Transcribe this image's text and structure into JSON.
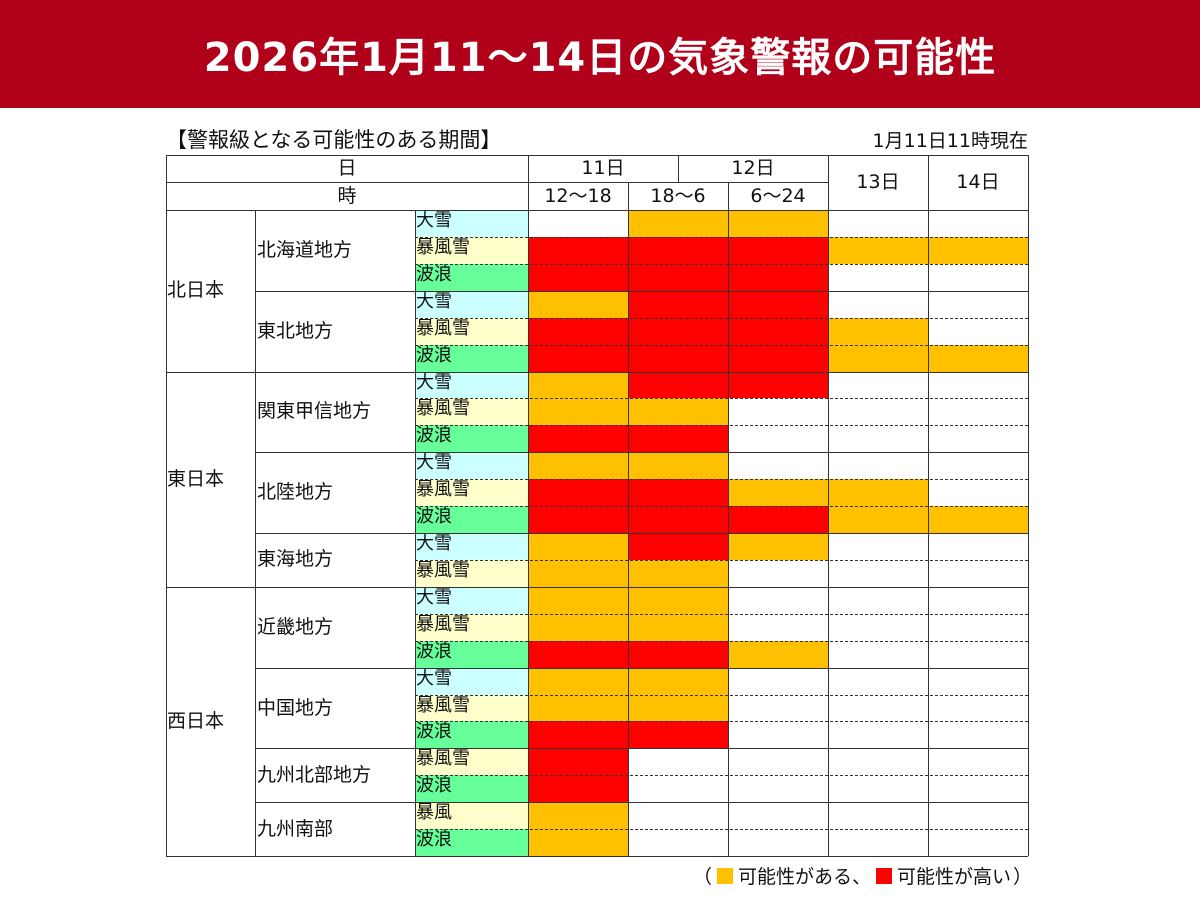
{
  "title": "2026年1月11〜14日の気象警報の可能性",
  "subtitle": "【警報級となる可能性のある期間】",
  "as_of": "1月11日11時現在",
  "colors": {
    "banner": "#b0001a",
    "possible": "#ffc000",
    "high": "#ff0000",
    "none": "#ffffff",
    "大雪": "#ccffff",
    "暴風雪": "#ffffcc",
    "暴風": "#ffffcc",
    "波浪": "#66ff99"
  },
  "header": {
    "day_label": "日",
    "hour_label": "時",
    "days": [
      "11日",
      "12日",
      "13日",
      "14日"
    ],
    "periods": [
      "12〜18",
      "18〜6",
      "6〜24"
    ]
  },
  "legend": {
    "open": "（",
    "possible": "可能性がある、",
    "high": "可能性が高い",
    "close": "）"
  },
  "levels_key": {
    "o": "可能性がある",
    "r": "可能性が高い",
    "w": "なし"
  },
  "groups": [
    {
      "name": "北日本",
      "areas": [
        {
          "name": "北海道地方",
          "rows": [
            {
              "type": "大雪",
              "levels": [
                "w",
                "o",
                "o",
                "w",
                "w"
              ]
            },
            {
              "type": "暴風雪",
              "levels": [
                "r",
                "r",
                "r",
                "o",
                "o"
              ]
            },
            {
              "type": "波浪",
              "levels": [
                "r",
                "r",
                "r",
                "w",
                "w"
              ]
            }
          ]
        },
        {
          "name": "東北地方",
          "rows": [
            {
              "type": "大雪",
              "levels": [
                "o",
                "r",
                "r",
                "w",
                "w"
              ]
            },
            {
              "type": "暴風雪",
              "levels": [
                "r",
                "r",
                "r",
                "o",
                "w"
              ]
            },
            {
              "type": "波浪",
              "levels": [
                "r",
                "r",
                "r",
                "o",
                "o"
              ]
            }
          ]
        }
      ]
    },
    {
      "name": "東日本",
      "areas": [
        {
          "name": "関東甲信地方",
          "rows": [
            {
              "type": "大雪",
              "levels": [
                "o",
                "r",
                "r",
                "w",
                "w"
              ]
            },
            {
              "type": "暴風雪",
              "levels": [
                "o",
                "o",
                "w",
                "w",
                "w"
              ]
            },
            {
              "type": "波浪",
              "levels": [
                "r",
                "r",
                "w",
                "w",
                "w"
              ]
            }
          ]
        },
        {
          "name": "北陸地方",
          "rows": [
            {
              "type": "大雪",
              "levels": [
                "o",
                "o",
                "w",
                "w",
                "w"
              ]
            },
            {
              "type": "暴風雪",
              "levels": [
                "r",
                "r",
                "o",
                "o",
                "w"
              ]
            },
            {
              "type": "波浪",
              "levels": [
                "r",
                "r",
                "r",
                "o",
                "o"
              ]
            }
          ]
        },
        {
          "name": "東海地方",
          "rows": [
            {
              "type": "大雪",
              "levels": [
                "o",
                "r",
                "o",
                "w",
                "w"
              ]
            },
            {
              "type": "暴風雪",
              "levels": [
                "o",
                "o",
                "w",
                "w",
                "w"
              ]
            }
          ]
        }
      ]
    },
    {
      "name": "西日本",
      "areas": [
        {
          "name": "近畿地方",
          "rows": [
            {
              "type": "大雪",
              "levels": [
                "o",
                "o",
                "w",
                "w",
                "w"
              ]
            },
            {
              "type": "暴風雪",
              "levels": [
                "o",
                "o",
                "w",
                "w",
                "w"
              ]
            },
            {
              "type": "波浪",
              "levels": [
                "r",
                "r",
                "o",
                "w",
                "w"
              ]
            }
          ]
        },
        {
          "name": "中国地方",
          "rows": [
            {
              "type": "大雪",
              "levels": [
                "o",
                "o",
                "w",
                "w",
                "w"
              ]
            },
            {
              "type": "暴風雪",
              "levels": [
                "o",
                "o",
                "w",
                "w",
                "w"
              ]
            },
            {
              "type": "波浪",
              "levels": [
                "r",
                "r",
                "w",
                "w",
                "w"
              ]
            }
          ]
        },
        {
          "name": "九州北部地方",
          "rows": [
            {
              "type": "暴風雪",
              "levels": [
                "r",
                "w",
                "w",
                "w",
                "w"
              ]
            },
            {
              "type": "波浪",
              "levels": [
                "r",
                "w",
                "w",
                "w",
                "w"
              ]
            }
          ]
        },
        {
          "name": "九州南部",
          "rows": [
            {
              "type": "暴風",
              "levels": [
                "o",
                "w",
                "w",
                "w",
                "w"
              ]
            },
            {
              "type": "波浪",
              "levels": [
                "o",
                "w",
                "w",
                "w",
                "w"
              ]
            }
          ]
        }
      ]
    }
  ]
}
